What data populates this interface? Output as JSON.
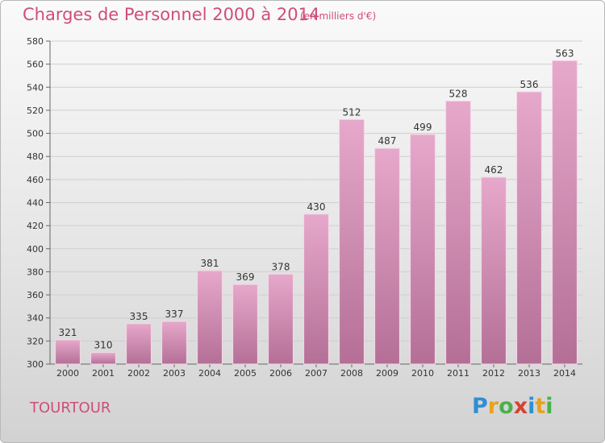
{
  "header": {
    "title": "Charges de Personnel 2000 à 2014",
    "subtitle": "(en milliers d'€)"
  },
  "footer": {
    "city": "TOURTOUR",
    "brand": "Proxiti",
    "brand_letters": [
      {
        "ch": "P",
        "color": "#2f8fd1"
      },
      {
        "ch": "r",
        "color": "#e8a21c"
      },
      {
        "ch": "o",
        "color": "#4bb14a"
      },
      {
        "ch": "x",
        "color": "#d9402f"
      },
      {
        "ch": "i",
        "color": "#2f8fd1"
      },
      {
        "ch": "t",
        "color": "#e8a21c"
      },
      {
        "ch": "i",
        "color": "#4bb14a"
      }
    ]
  },
  "colors": {
    "accent": "#d04d7a",
    "bar_top": "#e6a8cb",
    "bar_bottom": "#b46f96",
    "grid": "#cfcfcf"
  },
  "chart_data": {
    "type": "bar",
    "title": "Charges de Personnel 2000 à 2014",
    "subtitle": "(en milliers d'€)",
    "xlabel": "",
    "ylabel": "",
    "categories": [
      "2000",
      "2001",
      "2002",
      "2003",
      "2004",
      "2005",
      "2006",
      "2007",
      "2008",
      "2009",
      "2010",
      "2011",
      "2012",
      "2013",
      "2014"
    ],
    "values": [
      321,
      310,
      335,
      337,
      381,
      369,
      378,
      430,
      512,
      487,
      499,
      528,
      462,
      536,
      563
    ],
    "ylim": [
      300,
      580
    ],
    "yticks": [
      300,
      320,
      340,
      360,
      380,
      400,
      420,
      440,
      460,
      480,
      500,
      520,
      540,
      560,
      580
    ],
    "grid": true,
    "legend": "none"
  }
}
